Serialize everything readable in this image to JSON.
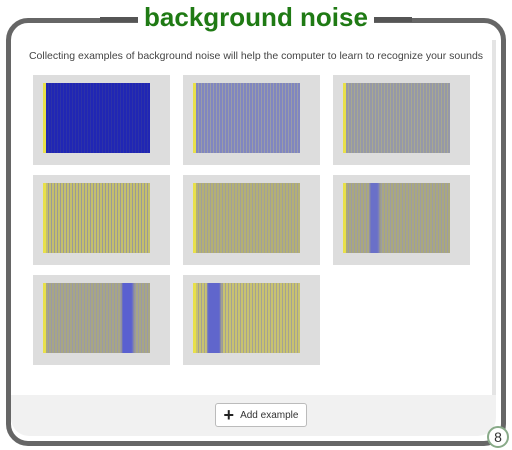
{
  "header": {
    "title": "background noise"
  },
  "description": "Collecting examples of background noise will help the computer to learn to recognize your sounds",
  "button": {
    "label": "Add example"
  },
  "badge": {
    "count": 8
  }
}
